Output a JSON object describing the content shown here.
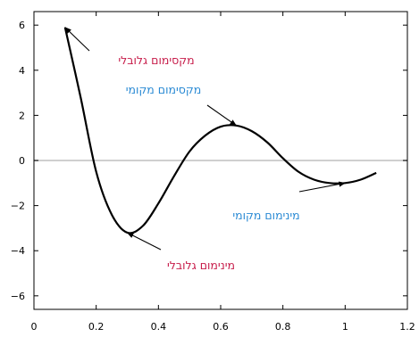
{
  "chart_data": {
    "type": "line",
    "title": "",
    "xlabel": "",
    "ylabel": "",
    "xlim": [
      0,
      1.2
    ],
    "ylim": [
      -6.6,
      6.6
    ],
    "xticks": [
      0,
      0.2,
      0.4,
      0.6,
      0.8,
      1,
      1.2
    ],
    "xtick_labels": [
      "0",
      "0.2",
      "0.4",
      "0.6",
      "0.8",
      "1",
      "1.2"
    ],
    "yticks": [
      6,
      4,
      2,
      0,
      -2,
      -4,
      -6
    ],
    "ytick_labels": [
      "6",
      "4",
      "2",
      "0",
      "−2",
      "−4",
      "−6"
    ],
    "zero_line": true,
    "grid": false,
    "series": [
      {
        "color": "#000000",
        "x": [
          0.1,
          0.15,
          0.2,
          0.25,
          0.3,
          0.35,
          0.4,
          0.45,
          0.5,
          0.55,
          0.6,
          0.65,
          0.7,
          0.75,
          0.8,
          0.85,
          0.9,
          0.95,
          1.0,
          1.05,
          1.1
        ],
        "y": [
          5.9,
          2.8,
          -0.5,
          -2.4,
          -3.2,
          -2.9,
          -1.9,
          -0.7,
          0.4,
          1.1,
          1.5,
          1.55,
          1.3,
          0.8,
          0.1,
          -0.5,
          -0.85,
          -1.0,
          -1.0,
          -0.85,
          -0.55
        ]
      }
    ],
    "annotations": [
      {
        "text": "מקסימום גלובלי",
        "color": "#c71c4a",
        "x": 0.1,
        "y": 5.9
      },
      {
        "text": "מקסימום מקומי",
        "color": "#2a8ad4",
        "x": 0.65,
        "y": 1.55
      },
      {
        "text": "מינימום מקומי",
        "color": "#2a8ad4",
        "x": 1.0,
        "y": -1.0
      },
      {
        "text": "מינימום גלובלי",
        "color": "#c71c4a",
        "x": 0.3,
        "y": -3.2
      }
    ]
  }
}
